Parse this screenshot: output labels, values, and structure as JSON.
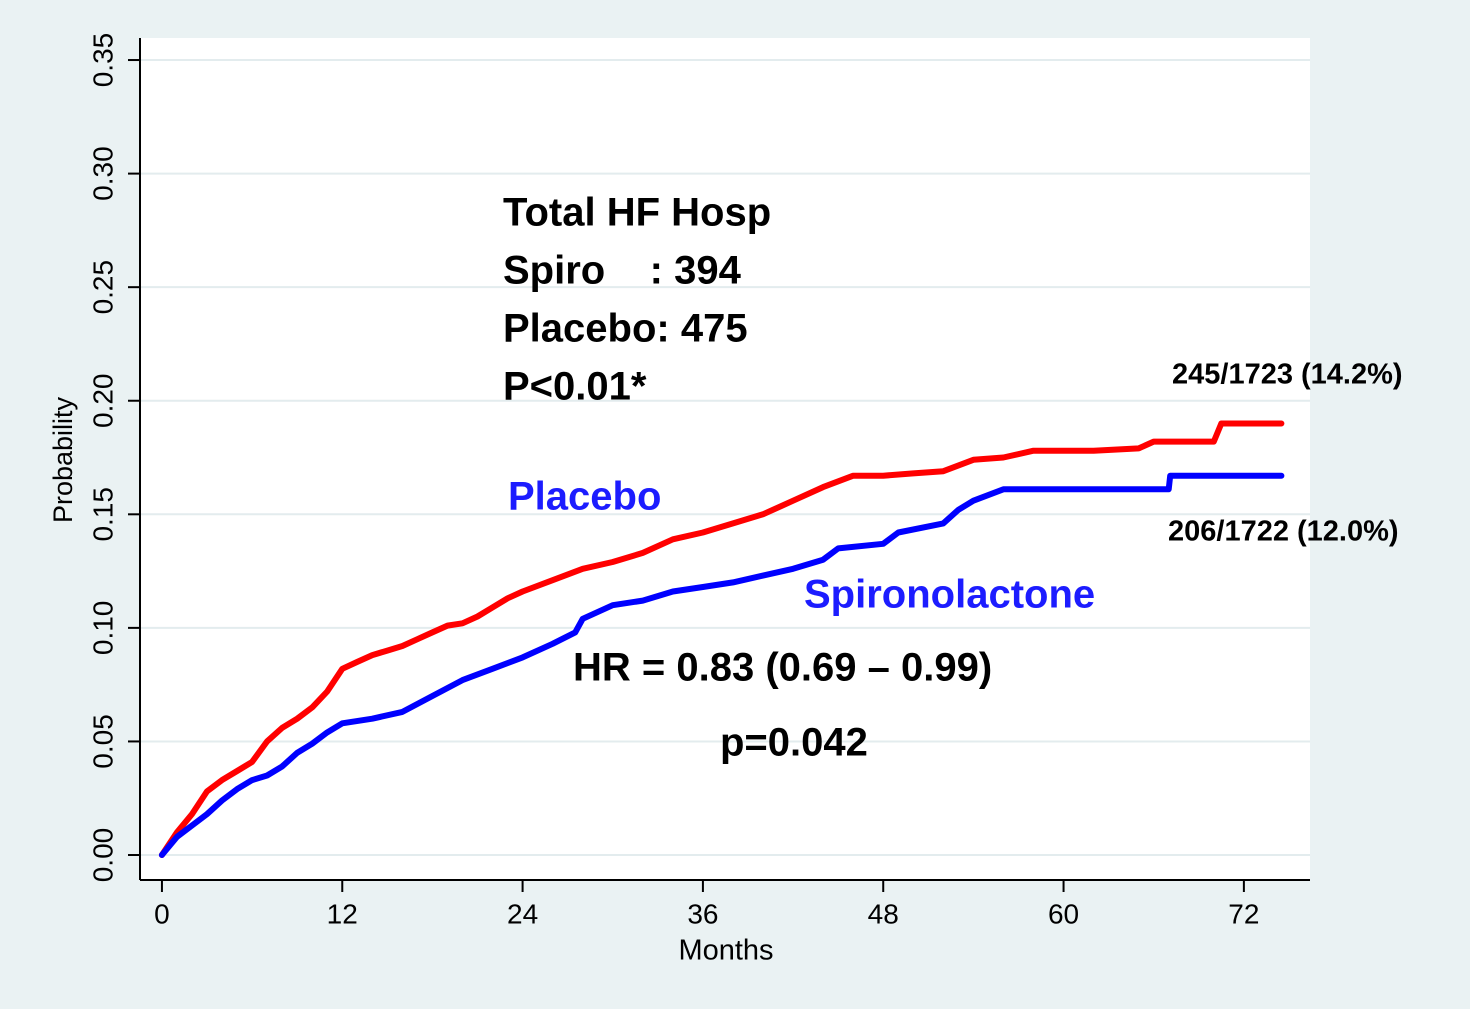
{
  "chart_data": {
    "type": "line",
    "y_label": "Probability",
    "x_label": "Months",
    "xlim": [
      -1.46,
      76.4
    ],
    "ylim": [
      -0.011,
      0.3597
    ],
    "xticks": [
      0,
      12,
      24,
      36,
      48,
      60,
      72
    ],
    "yticks": [
      {
        "value": 0,
        "label": "0.00"
      },
      {
        "value": 0.05,
        "label": "0.05"
      },
      {
        "value": 0.1,
        "label": "0.10"
      },
      {
        "value": 0.15,
        "label": "0.15"
      },
      {
        "value": 0.2,
        "label": "0.20"
      },
      {
        "value": 0.25,
        "label": "0.25"
      },
      {
        "value": 0.3,
        "label": "0.30"
      },
      {
        "value": 0.35,
        "label": "0.35"
      }
    ],
    "grid": true,
    "series": [
      {
        "name": "Placebo",
        "color": "#ff0000",
        "x": [
          0,
          1,
          2,
          3,
          4,
          5,
          6,
          7,
          8,
          9,
          10,
          11,
          12,
          13,
          14,
          15,
          16,
          17,
          18,
          19,
          20,
          21,
          22,
          23,
          24,
          26,
          28,
          30,
          32,
          34,
          36,
          38,
          40,
          42,
          44,
          46,
          48,
          50,
          52,
          54,
          56,
          58,
          62,
          65,
          66,
          70,
          70.5,
          74.5
        ],
        "values": [
          0,
          0.01,
          0.018,
          0.028,
          0.033,
          0.037,
          0.041,
          0.05,
          0.056,
          0.06,
          0.065,
          0.072,
          0.082,
          0.085,
          0.088,
          0.09,
          0.092,
          0.095,
          0.098,
          0.101,
          0.102,
          0.105,
          0.109,
          0.113,
          0.116,
          0.121,
          0.126,
          0.129,
          0.133,
          0.139,
          0.142,
          0.146,
          0.15,
          0.156,
          0.162,
          0.167,
          0.167,
          0.168,
          0.169,
          0.174,
          0.175,
          0.178,
          0.178,
          0.179,
          0.182,
          0.182,
          0.19,
          0.19
        ]
      },
      {
        "name": "Spironolactone",
        "color": "#0000ff",
        "x": [
          0,
          1,
          2,
          3,
          4,
          5,
          6,
          7,
          8,
          9,
          10,
          11,
          12,
          14,
          16,
          18,
          20,
          22,
          24,
          26,
          27.5,
          28,
          30,
          32,
          34,
          36,
          38,
          40,
          42,
          44,
          45,
          48,
          49,
          52,
          53,
          54,
          56,
          60,
          67,
          67.1,
          74.5
        ],
        "values": [
          0,
          0.008,
          0.013,
          0.018,
          0.024,
          0.029,
          0.033,
          0.035,
          0.039,
          0.045,
          0.049,
          0.054,
          0.058,
          0.06,
          0.063,
          0.07,
          0.077,
          0.082,
          0.087,
          0.093,
          0.098,
          0.104,
          0.11,
          0.112,
          0.116,
          0.118,
          0.12,
          0.123,
          0.126,
          0.13,
          0.135,
          0.137,
          0.142,
          0.146,
          0.152,
          0.156,
          0.161,
          0.161,
          0.161,
          0.167,
          0.167
        ]
      }
    ],
    "annotations": [
      "Total HF Hosp",
      "Spiro    : 394",
      "Placebo: 475",
      "P<0.01*",
      "HR = 0.83 (0.69 – 0.99)",
      "p=0.042",
      "245/1723 (14.2%)",
      "206/1722 (12.0%)"
    ]
  }
}
